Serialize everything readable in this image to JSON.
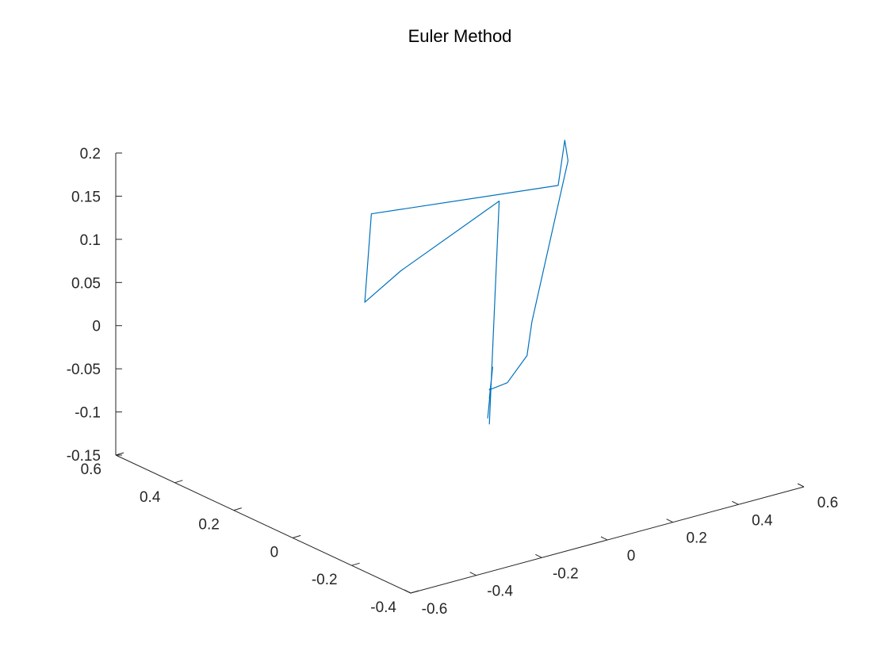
{
  "chart_data": {
    "type": "line3d",
    "title": "Euler Method",
    "xlim": [
      -0.6,
      0.6
    ],
    "ylim": [
      -0.4,
      0.6
    ],
    "zlim": [
      -0.15,
      0.2
    ],
    "x_ticks": [
      "-0.6",
      "-0.4",
      "-0.2",
      "0",
      "0.2",
      "0.4",
      "0.6"
    ],
    "y_ticks": [
      "-0.4",
      "-0.2",
      "0",
      "0.2",
      "0.4",
      "0.6"
    ],
    "z_ticks": [
      "-0.15",
      "-0.1",
      "-0.05",
      "0",
      "0.05",
      "0.1",
      "0.15",
      "0.2"
    ],
    "grid": false,
    "series": [
      {
        "color": "#0072BD",
        "points": [
          [
            0.0,
            0.0,
            -0.08
          ],
          [
            0.3,
            0.3,
            0.1
          ],
          [
            0.0,
            0.3,
            0.05
          ],
          [
            -0.2,
            0.2,
            0.05
          ],
          [
            0.0,
            0.4,
            0.1
          ],
          [
            0.3,
            0.1,
            0.15
          ],
          [
            0.5,
            0.3,
            0.15
          ],
          [
            0.6,
            0.4,
            0.1
          ],
          [
            0.4,
            0.3,
            -0.05
          ],
          [
            0.25,
            0.15,
            -0.05
          ],
          [
            0.1,
            0.05,
            -0.05
          ],
          [
            0.0,
            0.0,
            -0.04
          ],
          [
            0.05,
            0.05,
            -0.05
          ],
          [
            0.0,
            0.0,
            -0.05
          ],
          [
            0.1,
            0.1,
            -0.04
          ],
          [
            -0.05,
            -0.05,
            -0.06
          ]
        ]
      }
    ]
  }
}
